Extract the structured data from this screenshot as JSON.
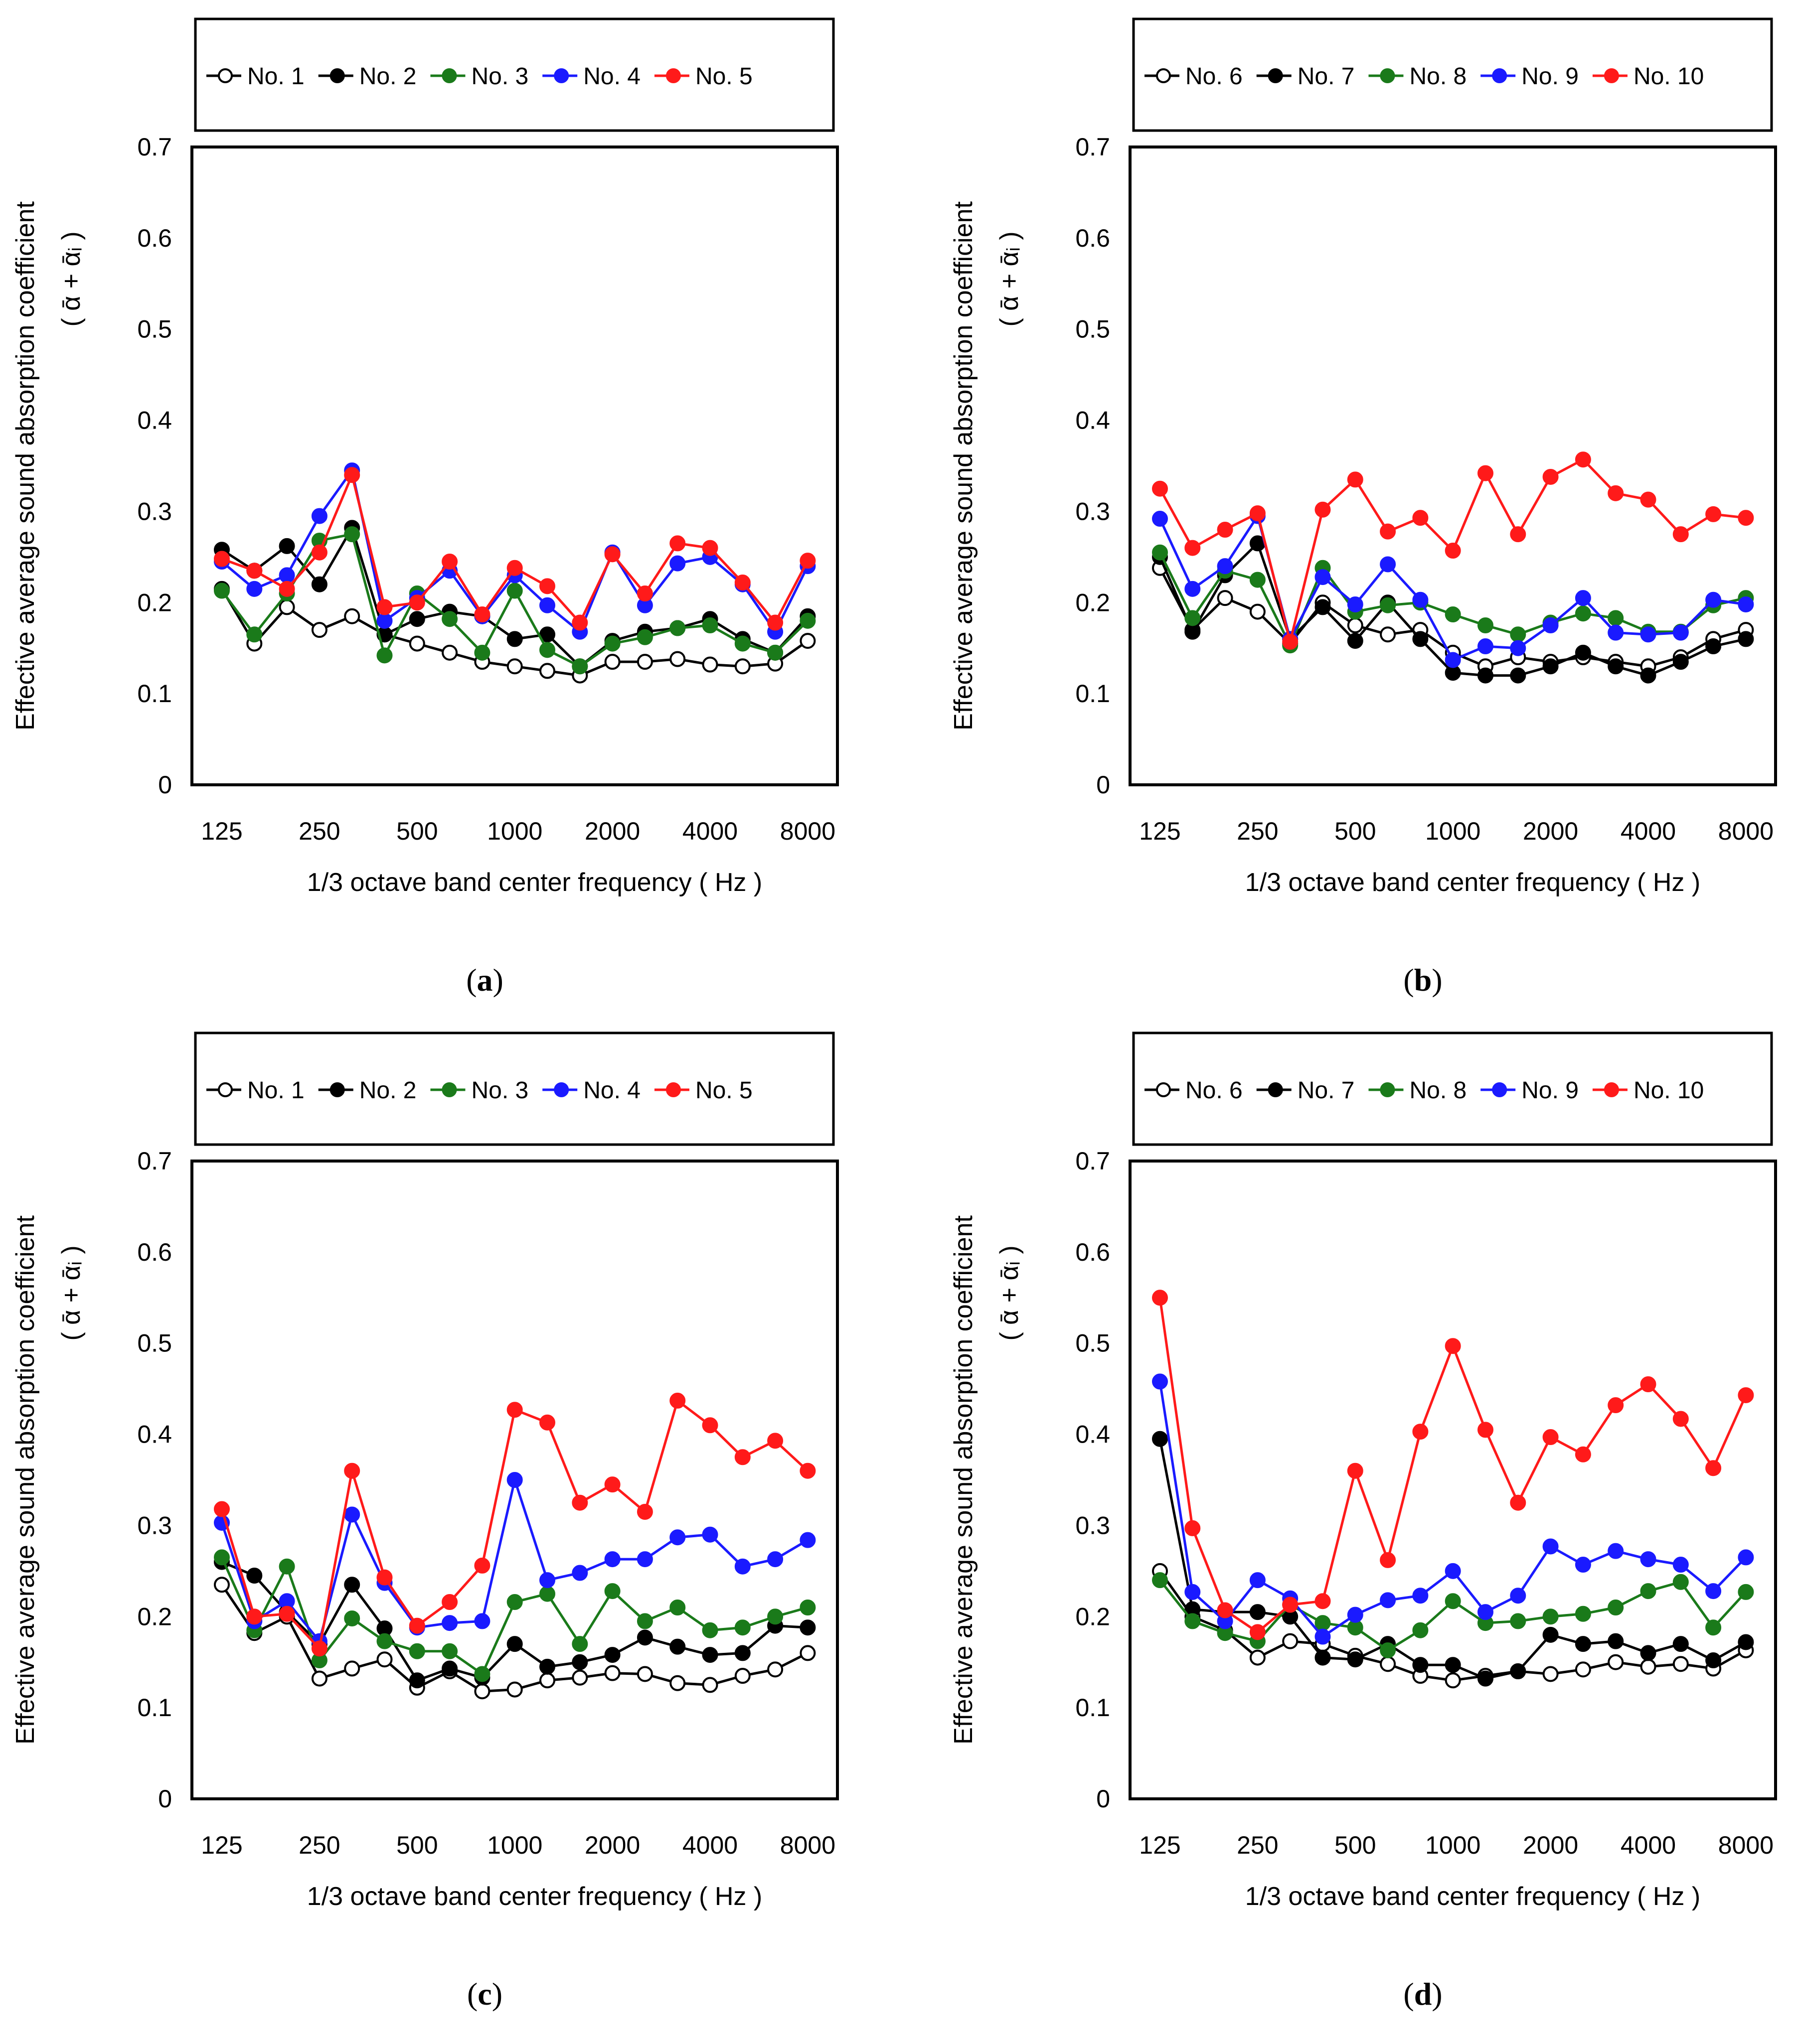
{
  "chart_data": [
    {
      "type": "line",
      "panel": "a",
      "panel_label": "a",
      "ylabel": "Effective average sound absorption coefficient",
      "ylabel2": "( ᾱ + ᾱᵢ )",
      "xlabel": "1/3 octave band center frequency ( Hz )",
      "ylim": [
        0,
        0.7
      ],
      "yticks": [
        "0",
        "0.1",
        "0.2",
        "0.3",
        "0.4",
        "0.5",
        "0.6",
        "0.7"
      ],
      "x": [
        125,
        160,
        200,
        250,
        315,
        400,
        500,
        630,
        800,
        1000,
        1250,
        1600,
        2000,
        2500,
        3150,
        4000,
        5000,
        6300,
        8000
      ],
      "xticks": [
        "125",
        "250",
        "500",
        "1000",
        "2000",
        "4000",
        "8000"
      ],
      "series": [
        {
          "name": "No. 1",
          "color": "#000000",
          "marker": "open",
          "values": [
            0.215,
            0.155,
            0.195,
            0.17,
            0.185,
            0.165,
            0.155,
            0.145,
            0.135,
            0.13,
            0.125,
            0.12,
            0.135,
            0.135,
            0.138,
            0.132,
            0.13,
            0.133,
            0.158
          ]
        },
        {
          "name": "No. 2",
          "color": "#000000",
          "marker": "filled",
          "values": [
            0.258,
            0.235,
            0.262,
            0.22,
            0.282,
            0.165,
            0.182,
            0.19,
            0.185,
            0.16,
            0.165,
            0.13,
            0.158,
            0.168,
            0.172,
            0.182,
            0.16,
            0.145,
            0.185
          ]
        },
        {
          "name": "No. 3",
          "color": "#1a7a1a",
          "marker": "filled",
          "values": [
            0.213,
            0.165,
            0.21,
            0.268,
            0.275,
            0.142,
            0.21,
            0.182,
            0.145,
            0.213,
            0.148,
            0.13,
            0.155,
            0.162,
            0.172,
            0.175,
            0.155,
            0.145,
            0.18
          ]
        },
        {
          "name": "No. 4",
          "color": "#1a1aff",
          "marker": "filled",
          "values": [
            0.245,
            0.215,
            0.23,
            0.295,
            0.345,
            0.18,
            0.205,
            0.235,
            0.185,
            0.23,
            0.197,
            0.168,
            0.255,
            0.197,
            0.243,
            0.25,
            0.22,
            0.168,
            0.24
          ]
        },
        {
          "name": "No. 5",
          "color": "#ff1a1a",
          "marker": "filled",
          "values": [
            0.248,
            0.235,
            0.215,
            0.255,
            0.34,
            0.195,
            0.2,
            0.245,
            0.187,
            0.238,
            0.218,
            0.178,
            0.253,
            0.21,
            0.265,
            0.26,
            0.222,
            0.178,
            0.246
          ]
        }
      ]
    },
    {
      "type": "line",
      "panel": "b",
      "panel_label": "b",
      "ylabel": "Effective average sound absorption coefficient",
      "ylabel2": "( ᾱ + ᾱᵢ )",
      "xlabel": "1/3 octave band center frequency ( Hz )",
      "ylim": [
        0,
        0.7
      ],
      "yticks": [
        "0",
        "0.1",
        "0.2",
        "0.3",
        "0.4",
        "0.5",
        "0.6",
        "0.7"
      ],
      "x": [
        125,
        160,
        200,
        250,
        315,
        400,
        500,
        630,
        800,
        1000,
        1250,
        1600,
        2000,
        2500,
        3150,
        4000,
        5000,
        6300,
        8000
      ],
      "xticks": [
        "125",
        "250",
        "500",
        "1000",
        "2000",
        "4000",
        "8000"
      ],
      "series": [
        {
          "name": "No. 6",
          "color": "#000000",
          "marker": "open",
          "values": [
            0.238,
            0.17,
            0.205,
            0.19,
            0.155,
            0.2,
            0.175,
            0.165,
            0.17,
            0.145,
            0.13,
            0.14,
            0.135,
            0.14,
            0.135,
            0.13,
            0.14,
            0.16,
            0.17
          ]
        },
        {
          "name": "No. 7",
          "color": "#000000",
          "marker": "filled",
          "values": [
            0.25,
            0.168,
            0.23,
            0.265,
            0.16,
            0.195,
            0.158,
            0.2,
            0.16,
            0.123,
            0.12,
            0.12,
            0.13,
            0.145,
            0.13,
            0.12,
            0.135,
            0.152,
            0.16
          ]
        },
        {
          "name": "No. 8",
          "color": "#1a7a1a",
          "marker": "filled",
          "values": [
            0.255,
            0.183,
            0.235,
            0.225,
            0.153,
            0.238,
            0.19,
            0.197,
            0.2,
            0.187,
            0.175,
            0.165,
            0.178,
            0.188,
            0.183,
            0.168,
            0.168,
            0.197,
            0.205
          ]
        },
        {
          "name": "No. 9",
          "color": "#1a1aff",
          "marker": "filled",
          "values": [
            0.292,
            0.215,
            0.24,
            0.295,
            0.16,
            0.228,
            0.198,
            0.242,
            0.203,
            0.137,
            0.152,
            0.15,
            0.175,
            0.205,
            0.167,
            0.165,
            0.167,
            0.203,
            0.198
          ]
        },
        {
          "name": "No. 10",
          "color": "#ff1a1a",
          "marker": "filled",
          "values": [
            0.325,
            0.26,
            0.28,
            0.298,
            0.157,
            0.302,
            0.335,
            0.278,
            0.293,
            0.257,
            0.342,
            0.275,
            0.338,
            0.357,
            0.32,
            0.313,
            0.275,
            0.297,
            0.293
          ]
        }
      ]
    },
    {
      "type": "line",
      "panel": "c",
      "panel_label": "c",
      "ylabel": "Effective average sound absorption coefficient",
      "ylabel2": "( ᾱ + ᾱᵢ )",
      "xlabel": "1/3 octave band center frequency ( Hz )",
      "ylim": [
        0,
        0.7
      ],
      "yticks": [
        "0",
        "0.1",
        "0.2",
        "0.3",
        "0.4",
        "0.5",
        "0.6",
        "0.7"
      ],
      "x": [
        125,
        160,
        200,
        250,
        315,
        400,
        500,
        630,
        800,
        1000,
        1250,
        1600,
        2000,
        2500,
        3150,
        4000,
        5000,
        6300,
        8000
      ],
      "xticks": [
        "125",
        "250",
        "500",
        "1000",
        "2000",
        "4000",
        "8000"
      ],
      "series": [
        {
          "name": "No. 1",
          "color": "#000000",
          "marker": "open",
          "values": [
            0.235,
            0.182,
            0.2,
            0.132,
            0.143,
            0.153,
            0.122,
            0.14,
            0.118,
            0.12,
            0.13,
            0.133,
            0.138,
            0.137,
            0.127,
            0.125,
            0.135,
            0.142,
            0.16
          ]
        },
        {
          "name": "No. 2",
          "color": "#000000",
          "marker": "filled",
          "values": [
            0.26,
            0.245,
            0.205,
            0.17,
            0.235,
            0.187,
            0.13,
            0.143,
            0.133,
            0.17,
            0.145,
            0.15,
            0.158,
            0.177,
            0.167,
            0.158,
            0.16,
            0.19,
            0.188
          ]
        },
        {
          "name": "No. 3",
          "color": "#1a7a1a",
          "marker": "filled",
          "values": [
            0.265,
            0.185,
            0.255,
            0.152,
            0.198,
            0.173,
            0.162,
            0.162,
            0.137,
            0.216,
            0.225,
            0.17,
            0.228,
            0.195,
            0.21,
            0.185,
            0.188,
            0.2,
            0.21
          ]
        },
        {
          "name": "No. 4",
          "color": "#1a1aff",
          "marker": "filled",
          "values": [
            0.303,
            0.195,
            0.217,
            0.173,
            0.312,
            0.237,
            0.188,
            0.193,
            0.195,
            0.35,
            0.24,
            0.248,
            0.263,
            0.263,
            0.287,
            0.29,
            0.255,
            0.263,
            0.284
          ]
        },
        {
          "name": "No. 5",
          "color": "#ff1a1a",
          "marker": "filled",
          "values": [
            0.318,
            0.2,
            0.203,
            0.165,
            0.36,
            0.243,
            0.19,
            0.216,
            0.256,
            0.427,
            0.413,
            0.325,
            0.345,
            0.315,
            0.437,
            0.41,
            0.375,
            0.393,
            0.36
          ]
        }
      ]
    },
    {
      "type": "line",
      "panel": "d",
      "panel_label": "d",
      "ylabel": "Effective average sound absorption coefficient",
      "ylabel2": "( ᾱ + ᾱᵢ )",
      "xlabel": "1/3 octave band center frequency ( Hz )",
      "ylim": [
        0,
        0.7
      ],
      "yticks": [
        "0",
        "0.1",
        "0.2",
        "0.3",
        "0.4",
        "0.5",
        "0.6",
        "0.7"
      ],
      "x": [
        125,
        160,
        200,
        250,
        315,
        400,
        500,
        630,
        800,
        1000,
        1250,
        1600,
        2000,
        2500,
        3150,
        4000,
        5000,
        6300,
        8000
      ],
      "xticks": [
        "125",
        "250",
        "500",
        "1000",
        "2000",
        "4000",
        "8000"
      ],
      "series": [
        {
          "name": "No. 6",
          "color": "#000000",
          "marker": "open",
          "values": [
            0.25,
            0.2,
            0.185,
            0.155,
            0.173,
            0.17,
            0.157,
            0.148,
            0.135,
            0.13,
            0.135,
            0.14,
            0.137,
            0.142,
            0.15,
            0.145,
            0.148,
            0.143,
            0.163
          ]
        },
        {
          "name": "No. 7",
          "color": "#000000",
          "marker": "filled",
          "values": [
            0.395,
            0.208,
            0.205,
            0.205,
            0.2,
            0.155,
            0.153,
            0.17,
            0.147,
            0.147,
            0.132,
            0.14,
            0.18,
            0.17,
            0.173,
            0.16,
            0.17,
            0.152,
            0.172
          ]
        },
        {
          "name": "No. 8",
          "color": "#1a7a1a",
          "marker": "filled",
          "values": [
            0.24,
            0.195,
            0.182,
            0.173,
            0.213,
            0.193,
            0.188,
            0.163,
            0.185,
            0.217,
            0.193,
            0.195,
            0.2,
            0.203,
            0.21,
            0.228,
            0.238,
            0.188,
            0.227
          ]
        },
        {
          "name": "No. 9",
          "color": "#1a1aff",
          "marker": "filled",
          "values": [
            0.458,
            0.227,
            0.195,
            0.24,
            0.22,
            0.178,
            0.202,
            0.218,
            0.223,
            0.25,
            0.205,
            0.223,
            0.277,
            0.257,
            0.272,
            0.263,
            0.257,
            0.228,
            0.265
          ]
        },
        {
          "name": "No. 10",
          "color": "#ff1a1a",
          "marker": "filled",
          "values": [
            0.55,
            0.297,
            0.207,
            0.183,
            0.213,
            0.217,
            0.36,
            0.262,
            0.403,
            0.497,
            0.405,
            0.325,
            0.397,
            0.378,
            0.432,
            0.455,
            0.417,
            0.363,
            0.443
          ]
        }
      ]
    }
  ]
}
